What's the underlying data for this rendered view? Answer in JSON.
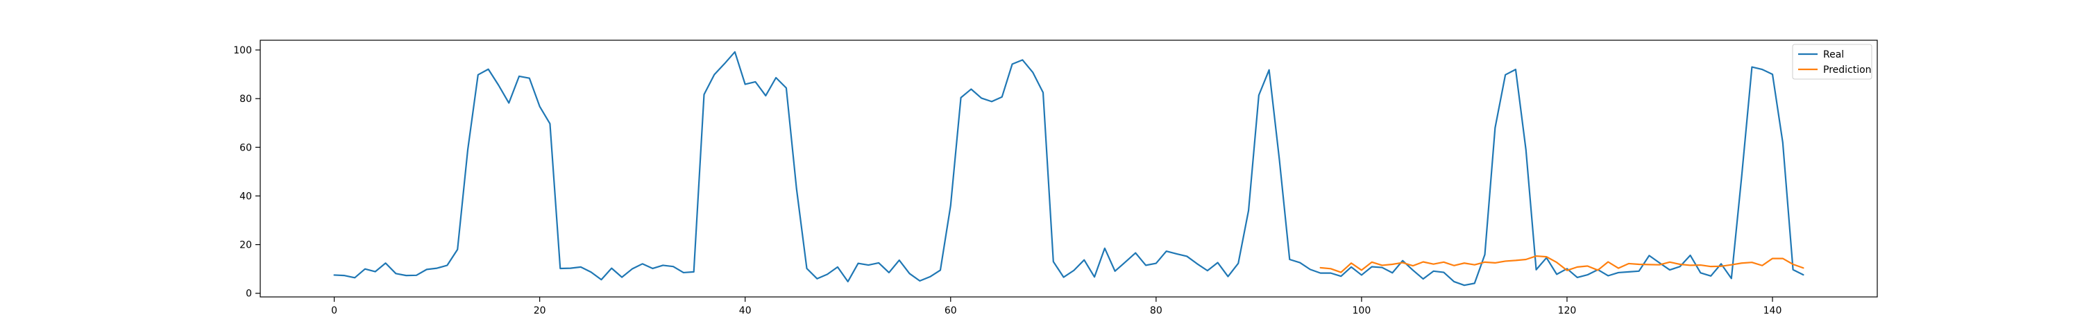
{
  "chart_data": {
    "type": "line",
    "title": "",
    "xlabel": "",
    "ylabel": "",
    "xlim": [
      -7.2,
      150.2
    ],
    "ylim": [
      -1.5,
      104
    ],
    "xticks": [
      0,
      20,
      40,
      60,
      80,
      100,
      120,
      140
    ],
    "yticks": [
      0,
      20,
      40,
      60,
      80,
      100
    ],
    "grid": false,
    "legend": {
      "position": "top-right"
    },
    "series": [
      {
        "name": "Real",
        "color": "#1f77b4",
        "x_start": 0,
        "values": [
          7.5,
          7.3,
          6.4,
          10.0,
          8.9,
          12.4,
          8.1,
          7.3,
          7.4,
          9.8,
          10.3,
          11.5,
          18.0,
          59.0,
          89.8,
          92.1,
          85.5,
          78.2,
          89.2,
          88.4,
          76.8,
          69.7,
          10.2,
          10.3,
          10.8,
          8.7,
          5.6,
          10.3,
          6.6,
          10.0,
          12.1,
          10.2,
          11.5,
          11.0,
          8.5,
          8.8,
          81.7,
          89.9,
          94.4,
          99.2,
          85.9,
          86.9,
          81.2,
          88.6,
          84.4,
          43.0,
          10.2,
          6.0,
          7.8,
          10.8,
          4.8,
          12.3,
          11.6,
          12.5,
          8.5,
          13.6,
          8.1,
          5.1,
          6.8,
          9.5,
          36.0,
          80.4,
          83.9,
          80.2,
          78.8,
          80.7,
          94.2,
          95.9,
          90.8,
          82.5,
          13.0,
          6.6,
          9.4,
          13.7,
          6.7,
          18.5,
          9.1,
          12.8,
          16.6,
          11.5,
          12.3,
          17.3,
          16.2,
          15.2,
          12.1,
          9.3,
          12.6,
          6.9,
          12.3,
          34.0,
          81.4,
          91.8,
          55.0,
          13.9,
          12.6,
          9.8,
          8.3,
          8.3,
          7.0,
          10.8,
          7.5,
          10.9,
          10.6,
          8.4,
          13.4,
          9.5,
          5.9,
          9.1,
          8.6,
          4.8,
          3.3,
          4.1,
          15.9,
          68.0,
          89.8,
          92.0,
          59.0,
          9.7,
          14.6,
          7.8,
          10.1,
          6.5,
          7.6,
          9.7,
          7.2,
          8.5,
          8.8,
          9.1,
          15.5,
          12.5,
          9.6,
          11.0,
          15.6,
          8.4,
          7.1,
          12.1,
          6.1,
          48.0,
          93.0,
          92.0,
          90.0,
          62.0,
          9.7,
          7.6
        ]
      },
      {
        "name": "Prediction",
        "color": "#ff7f0e",
        "x_start": 96,
        "values": [
          10.5,
          10.1,
          8.6,
          12.4,
          9.5,
          12.8,
          11.5,
          11.9,
          12.6,
          11.3,
          12.9,
          12.0,
          12.8,
          11.4,
          12.4,
          11.7,
          12.8,
          12.5,
          13.2,
          13.5,
          13.9,
          15.3,
          15.0,
          12.7,
          9.4,
          10.8,
          11.2,
          9.5,
          12.9,
          10.3,
          12.2,
          11.9,
          11.8,
          11.7,
          12.8,
          11.9,
          11.5,
          11.6,
          11.0,
          11.1,
          11.7,
          12.4,
          12.7,
          11.4,
          14.3,
          14.3,
          11.9,
          10.4
        ]
      }
    ]
  }
}
